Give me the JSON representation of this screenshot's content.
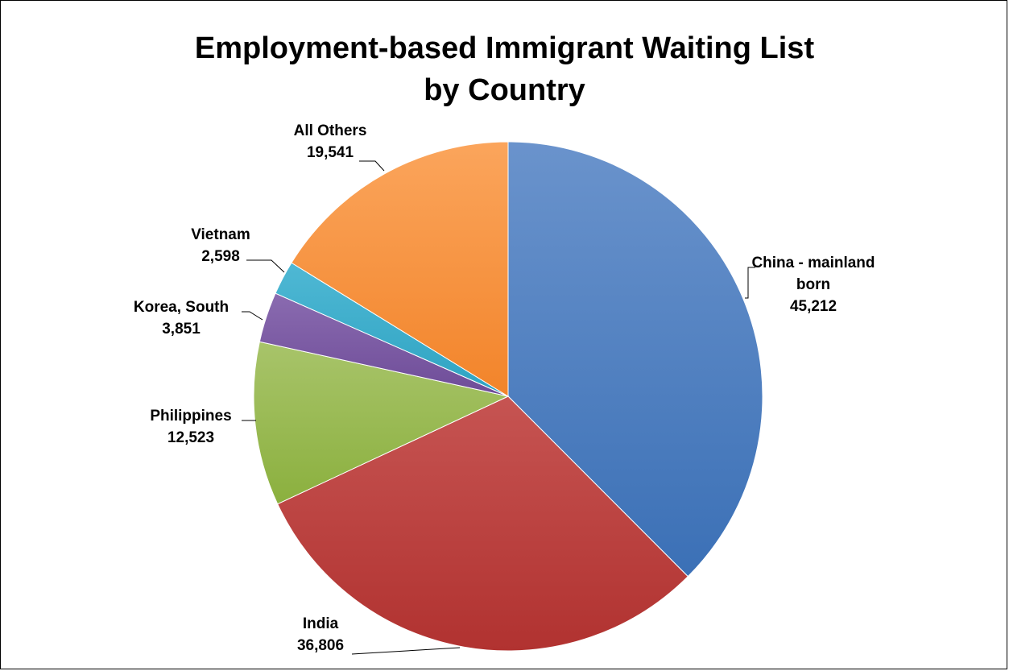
{
  "chart_data": {
    "type": "pie",
    "title": [
      "Employment-based Immigrant Waiting List",
      "by Country"
    ],
    "legend": "none",
    "slices": [
      {
        "label": [
          "China - mainland",
          "born"
        ],
        "value": 45212,
        "value_text": "45,212",
        "color_top": "#6a93cc",
        "color_bottom": "#3b70b6"
      },
      {
        "label": [
          "India"
        ],
        "value": 36806,
        "value_text": "36,806",
        "color_top": "#c65452",
        "color_bottom": "#b13230"
      },
      {
        "label": [
          "Philippines"
        ],
        "value": 12523,
        "value_text": "12,523",
        "color_top": "#a8c46a",
        "color_bottom": "#8bb03e"
      },
      {
        "label": [
          "Korea, South"
        ],
        "value": 3851,
        "value_text": "3,851",
        "color_top": "#8a6bb0",
        "color_bottom": "#6e4c98"
      },
      {
        "label": [
          "Vietnam"
        ],
        "value": 2598,
        "value_text": "2,598",
        "color_top": "#4fb8d4",
        "color_bottom": "#2ea3c2"
      },
      {
        "label": [
          "All Others"
        ],
        "value": 19541,
        "value_text": "19,541",
        "color_top": "#fba55c",
        "color_bottom": "#f2842a"
      }
    ]
  }
}
